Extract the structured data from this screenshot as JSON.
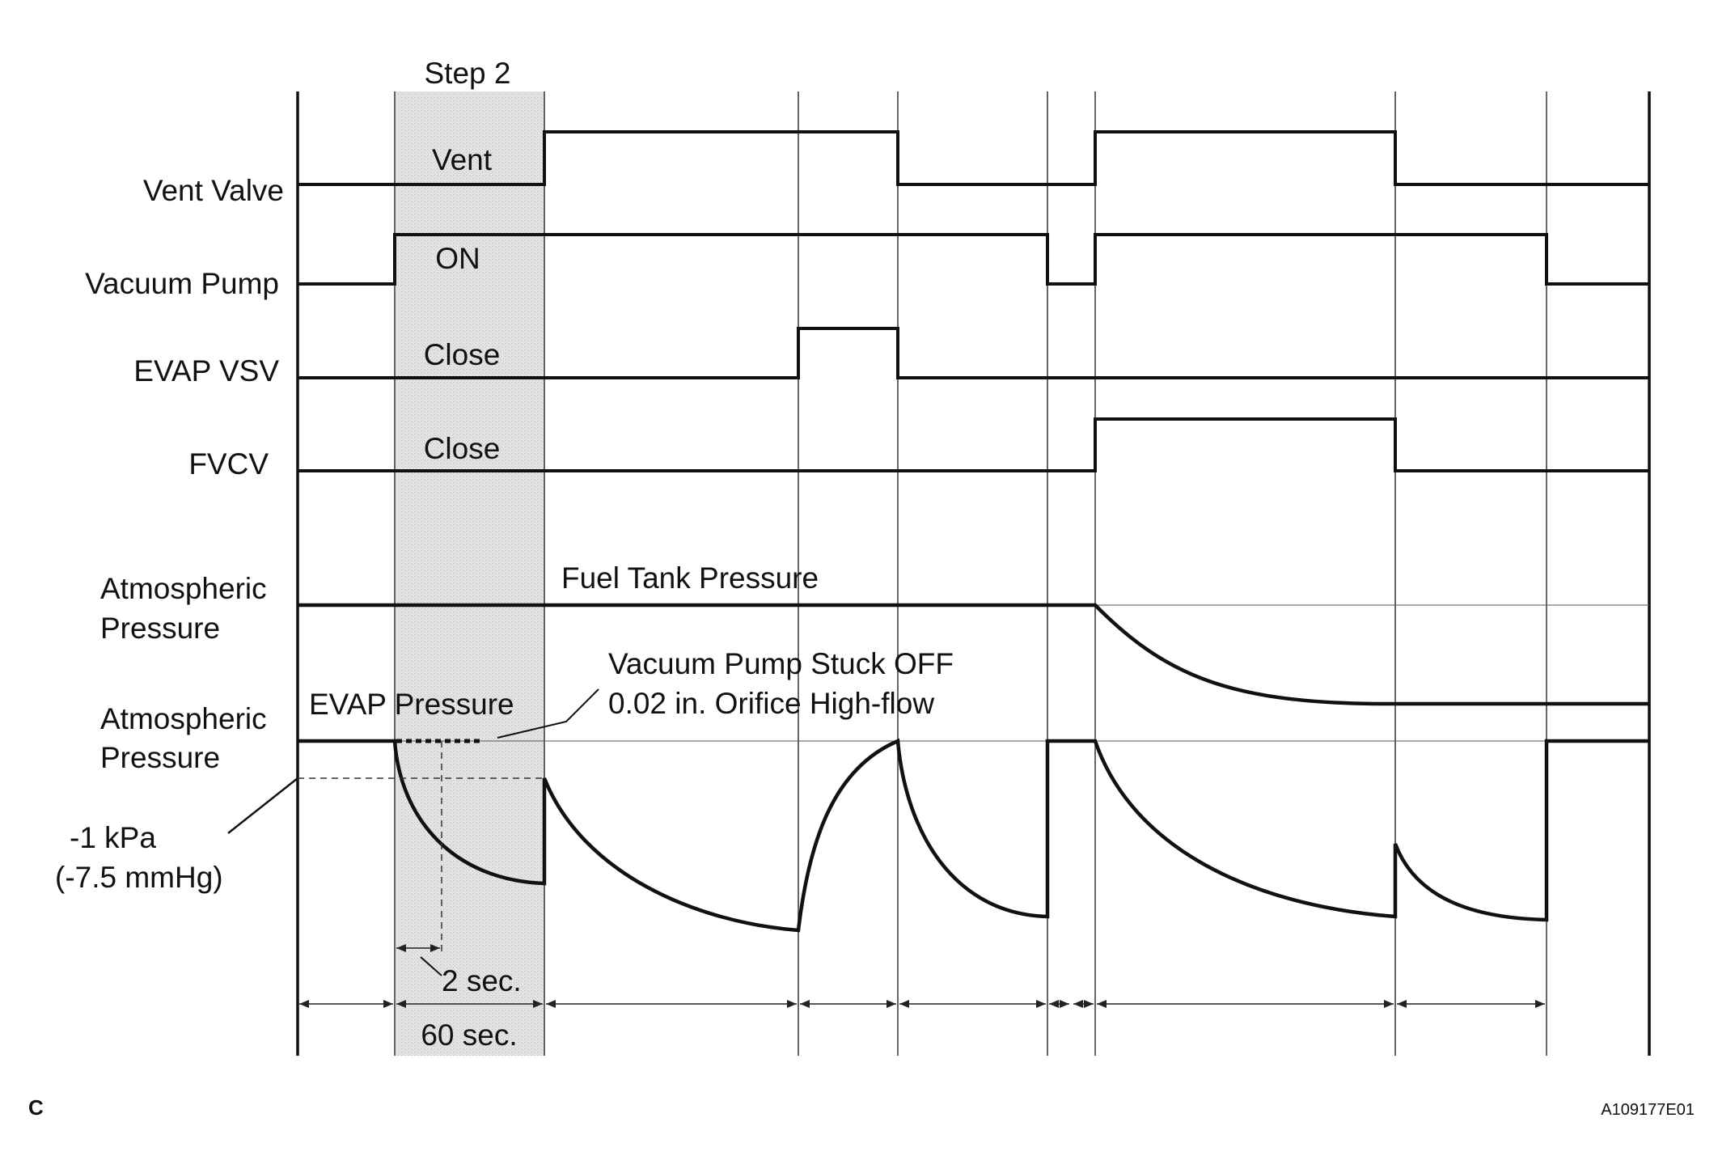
{
  "step_label": "Step 2",
  "signals": [
    {
      "label": "Vent Valve",
      "inner_label": "Vent"
    },
    {
      "label": "Vacuum Pump",
      "inner_label": "ON"
    },
    {
      "label": "EVAP VSV",
      "inner_label": "Close"
    },
    {
      "label": "FVCV",
      "inner_label": "Close"
    }
  ],
  "pressure": {
    "atm_label_line1": "Atmospheric",
    "atm_label_line2": "Pressure",
    "fuel_tank_label": "Fuel Tank Pressure",
    "evap_label": "EVAP Pressure",
    "callout_line1": "Vacuum Pump Stuck OFF",
    "callout_line2": "0.02 in. Orifice High-flow",
    "threshold_line1": "-1 kPa",
    "threshold_line2": "(-7.5 mmHg)"
  },
  "timing": {
    "two_sec": "2 sec.",
    "sixty_sec": "60 sec."
  },
  "footer": {
    "left_code": "C",
    "figure_id": "A109177E01"
  }
}
